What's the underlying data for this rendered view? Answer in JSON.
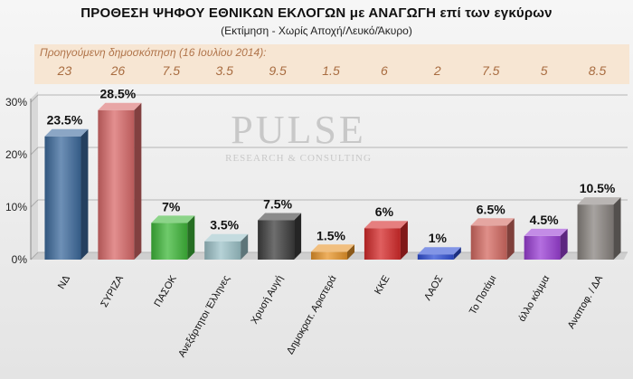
{
  "chart_data": {
    "type": "bar",
    "title": "ΠΡΟΘΕΣΗ ΨΗΦΟΥ ΕΘΝΙΚΩΝ ΕΚΛΟΓΩΝ με ΑΝΑΓΩΓΗ επί των εγκύρων",
    "subtitle": "(Εκτίμηση  -  Χωρίς Αποχή/Λευκό/Άκυρο)",
    "previous_poll_label": "Προηγούμενη δημοσκόπηση  (16 Ιουλίου 2014):",
    "categories": [
      "ΝΔ",
      "ΣΥΡΙΖΑ",
      "ΠΑΣΟΚ",
      "Ανεξάρτητοι Έλληνες",
      "Χρυσή Αυγή",
      "Δημοκρατ. Αριστερά",
      "ΚΚΕ",
      "ΛΑΟΣ",
      "Το Ποτάμι",
      "άλλο κόμμα",
      "Αναποφ. / ΔΑ"
    ],
    "values": [
      23.5,
      28.5,
      7,
      3.5,
      7.5,
      1.5,
      6,
      1,
      6.5,
      4.5,
      10.5
    ],
    "value_labels": [
      "23.5%",
      "28.5%",
      "7%",
      "3.5%",
      "7.5%",
      "1.5%",
      "6%",
      "1%",
      "6.5%",
      "4.5%",
      "10.5%"
    ],
    "previous_values": [
      "23",
      "26",
      "7.5",
      "3.5",
      "9.5",
      "1.5",
      "6",
      "2",
      "7.5",
      "5",
      "8.5"
    ],
    "yticks": [
      "0%",
      "10%",
      "20%",
      "30%"
    ],
    "ylim": [
      0,
      30
    ],
    "grid": true,
    "colors": [
      "#3d6b9e",
      "#d96a6a",
      "#3fb83a",
      "#9dc3c9",
      "#3e3e3e",
      "#e8952a",
      "#d62a2a",
      "#2f4fd6",
      "#d46a62",
      "#9b3fd6",
      "#8a8480"
    ],
    "watermark_title": "PULSE",
    "watermark_subtitle": "RESEARCH & CONSULTING"
  }
}
